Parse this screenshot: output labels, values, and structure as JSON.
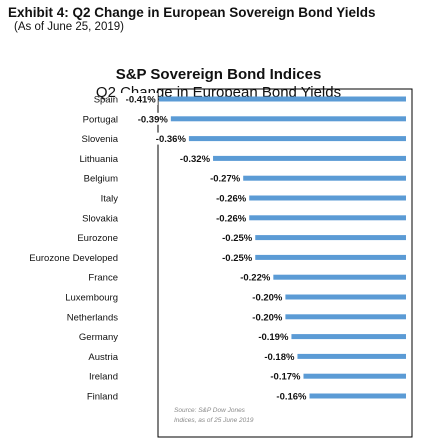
{
  "exhibit": {
    "title": "Exhibit 4: Q2 Change in European Sovereign Bond Yields",
    "subtitle": "(As of June 25, 2019)"
  },
  "source_note": [
    "Source: S&P Dow Jones",
    "Indices, as of 25 June 2019"
  ],
  "colors": {
    "bar": "#5b9bd5",
    "frame": "#000000"
  },
  "chart_data": {
    "type": "bar",
    "orientation": "horizontal",
    "title": "S&P Sovereign Bond Indices",
    "subtitle": "Q2 Change in European Bond Yields",
    "xlabel": "",
    "ylabel": "",
    "categories": [
      "Spain",
      "Portugal",
      "Slovenia",
      "Lithuania",
      "Belgium",
      "Italy",
      "Slovakia",
      "Eurozone",
      "Eurozone Developed",
      "France",
      "Luxembourg",
      "Netherlands",
      "Germany",
      "Austria",
      "Ireland",
      "Finland"
    ],
    "values": [
      -0.41,
      -0.39,
      -0.36,
      -0.32,
      -0.27,
      -0.26,
      -0.26,
      -0.25,
      -0.25,
      -0.22,
      -0.2,
      -0.2,
      -0.19,
      -0.18,
      -0.17,
      -0.16
    ],
    "value_labels": [
      "-0.41%",
      "-0.39%",
      "-0.36%",
      "-0.32%",
      "-0.27%",
      "-0.26%",
      "-0.26%",
      "-0.25%",
      "-0.25%",
      "-0.22%",
      "-0.20%",
      "-0.20%",
      "-0.19%",
      "-0.18%",
      "-0.17%",
      "-0.16%"
    ],
    "xlim": [
      -0.42,
      0
    ],
    "grid": false,
    "legend": "none"
  }
}
